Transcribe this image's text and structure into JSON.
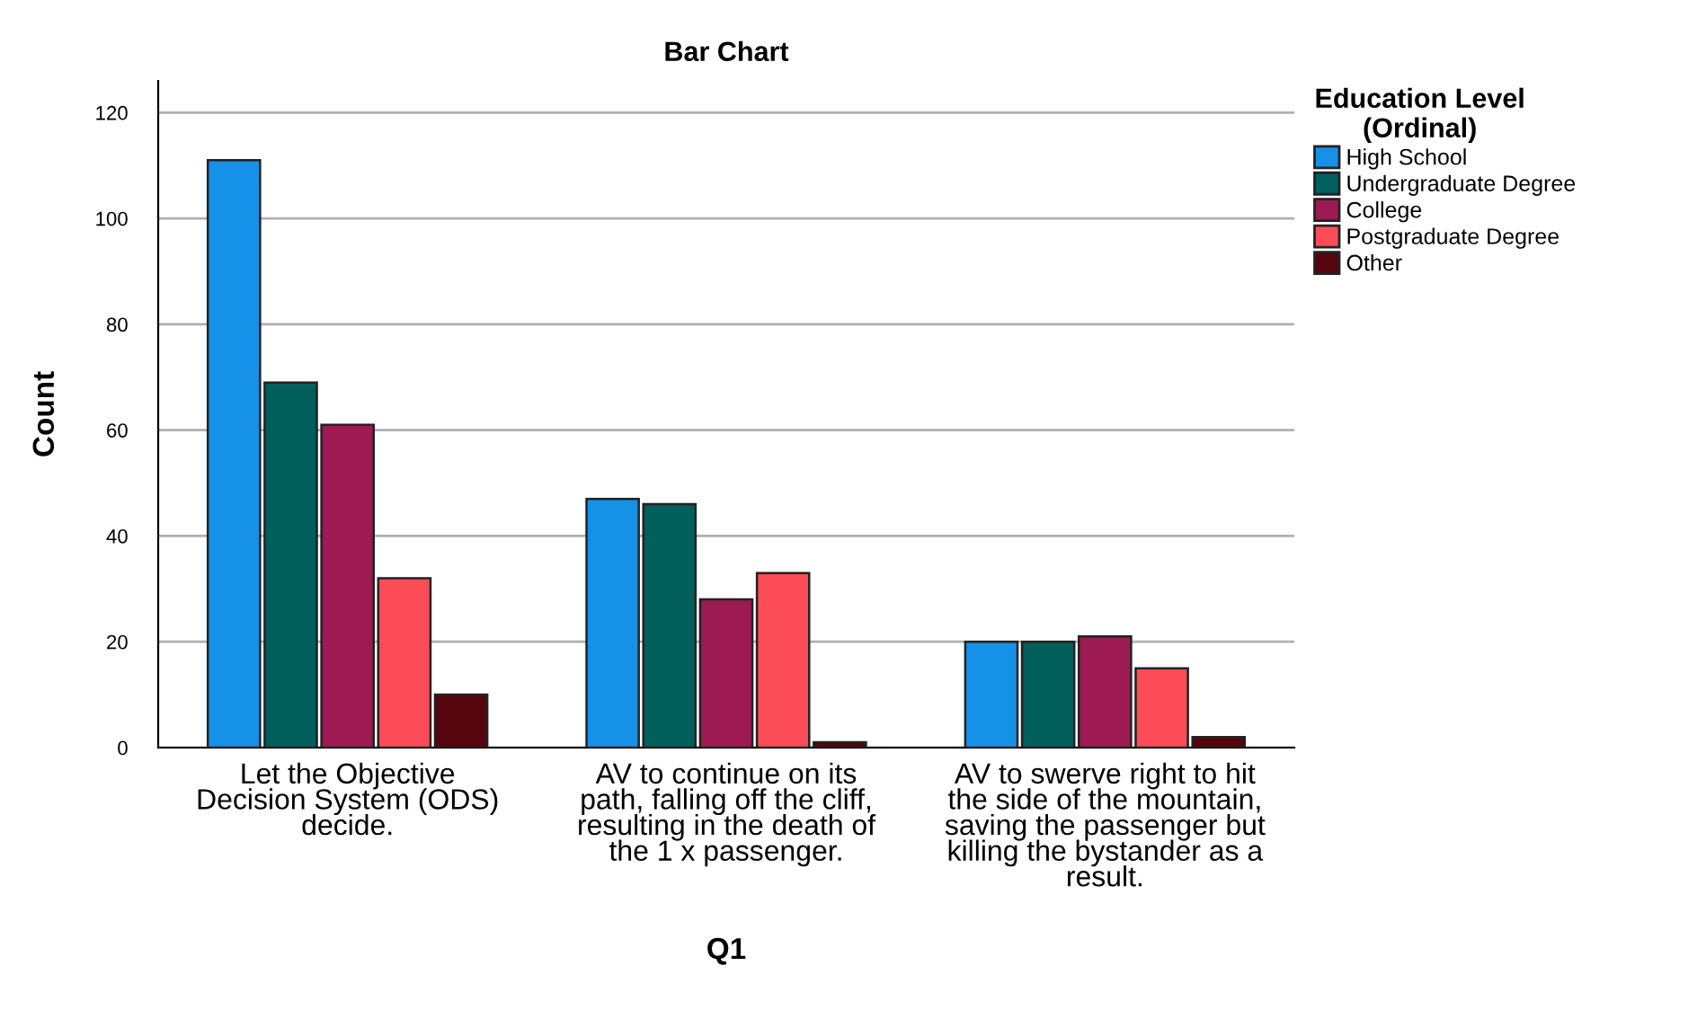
{
  "chart_data": {
    "type": "bar",
    "title": "Bar Chart",
    "xlabel": "Q1",
    "ylabel": "Count",
    "legend_title": "Education Level\n(Ordinal)",
    "categories": [
      "Let the Objective\nDecision System (ODS)\ndecide.",
      "AV to continue on its\npath, falling off the cliff,\nresulting in the death of\nthe 1 x passenger.",
      "AV to swerve right to hit\nthe side of the mountain,\nsaving the passenger but\nkilling the bystander as a\nresult."
    ],
    "series": [
      {
        "name": "High School",
        "color": "#1591e8",
        "values": [
          111,
          47,
          20
        ]
      },
      {
        "name": "Undergraduate Degree",
        "color": "#015f5c",
        "values": [
          69,
          46,
          20
        ]
      },
      {
        "name": "College",
        "color": "#9e1a52",
        "values": [
          61,
          28,
          21
        ]
      },
      {
        "name": "Postgraduate Degree",
        "color": "#fc4c57",
        "values": [
          32,
          33,
          15
        ]
      },
      {
        "name": "Other",
        "color": "#56050c",
        "values": [
          10,
          1,
          2
        ]
      }
    ],
    "ylim": [
      0,
      126
    ],
    "yticks": [
      0,
      20,
      40,
      60,
      80,
      100,
      120
    ],
    "grid": "y",
    "legend": "right"
  }
}
